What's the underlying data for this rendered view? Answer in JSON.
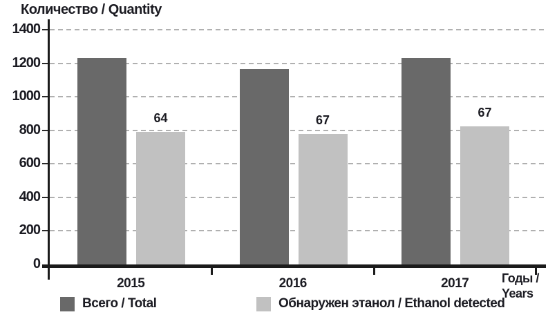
{
  "title": "Количество / Quantity",
  "x_axis_title": {
    "line1": "Годы /",
    "line2": "Years"
  },
  "legend": {
    "items": [
      {
        "label": "Всего / Total",
        "color": "#696969"
      },
      {
        "label": "Обнаружен этанол / Ethanol detected",
        "color": "#c1c1c1"
      }
    ]
  },
  "colors": {
    "total_bar": "#696969",
    "ethanol_bar": "#c1c1c1",
    "gridline": "#b0b0b0",
    "axis": "#1b1b1b",
    "text": "#1b1b22"
  },
  "chart_data": {
    "type": "bar",
    "title": "Количество / Quantity",
    "xlabel": "Годы / Years",
    "ylabel": "Количество / Quantity",
    "categories": [
      "2015",
      "2016",
      "2017"
    ],
    "series": [
      {
        "name": "Всего / Total",
        "color": "#696969",
        "values": [
          1230,
          1165,
          1230
        ]
      },
      {
        "name": "Обнаружен этанол / Ethanol detected",
        "color": "#c1c1c1",
        "values": [
          790,
          780,
          825
        ],
        "data_labels": [
          "64",
          "67",
          "67"
        ]
      }
    ],
    "ylim": [
      0,
      1400
    ],
    "yticks": [
      0,
      200,
      400,
      600,
      800,
      1000,
      1200,
      1400
    ],
    "grid": "horizontal-dashed",
    "legend_position": "bottom"
  }
}
